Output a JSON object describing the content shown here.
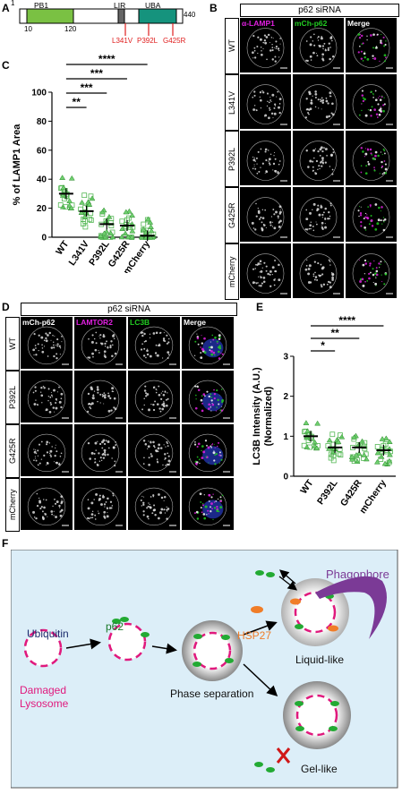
{
  "panels": {
    "A": "A",
    "B": "B",
    "C": "C",
    "D": "D",
    "E": "E",
    "F": "F"
  },
  "panelA": {
    "start": "1",
    "end": "440",
    "pb1": "PB1",
    "pb1_start": "10",
    "pb1_end": "120",
    "lir": "LIR",
    "uba": "UBA",
    "mutations": [
      "L341V",
      "P392L",
      "G425R"
    ]
  },
  "panelB": {
    "header": "p62 siRNA",
    "columns": [
      "α-LAMP1",
      "mCh-p62",
      "Merge"
    ],
    "rows": [
      "WT",
      "L341V",
      "P392L",
      "G425R",
      "mCherry"
    ]
  },
  "panelD": {
    "header": "p62 siRNA",
    "columns": [
      "mCh-p62",
      "LAMTOR2",
      "LC3B",
      "Merge"
    ],
    "rows": [
      "WT",
      "P392L",
      "G425R",
      "mCherry"
    ]
  },
  "colors": {
    "lamp1": "#e020e0",
    "green": "#22bb22",
    "red": "#e02020",
    "bg_f": "#dceef8",
    "pink": "#e0197d",
    "purple": "#7b3a96",
    "orange": "#f07d28",
    "navy": "#1a2a6c"
  },
  "chart_data": [
    {
      "type": "scatter",
      "panel": "C",
      "ylabel": "% of LAMP1 Area",
      "ylim": [
        0,
        100
      ],
      "yticks": [
        "0",
        "20",
        "40",
        "60",
        "80",
        "100"
      ],
      "categories": [
        "WT",
        "L341V",
        "P392L",
        "G425R",
        "mCherry"
      ],
      "means": [
        30,
        18,
        9,
        8,
        1
      ],
      "significance": [
        "****",
        "***",
        "***",
        "**"
      ]
    },
    {
      "type": "scatter",
      "panel": "E",
      "ylabel": "LC3B Intensity (A.U.)\n(Normalized)",
      "ylim": [
        0,
        3
      ],
      "yticks": [
        "0",
        "1",
        "2",
        "3"
      ],
      "categories": [
        "WT",
        "P392L",
        "G425R",
        "mCherry"
      ],
      "means": [
        1.0,
        0.72,
        0.72,
        0.65
      ],
      "significance": [
        "****",
        "**",
        "*"
      ]
    }
  ],
  "panelF": {
    "labels": {
      "ubiquitin": "Ubiquitin",
      "p62": "p62",
      "damaged": "Damaged",
      "lysosome": "Lysosome",
      "phase": "Phase separation",
      "hsp27": "HSP27",
      "phagophore": "Phagophore",
      "liquid": "Liquid-like",
      "gel": "Gel-like"
    }
  }
}
